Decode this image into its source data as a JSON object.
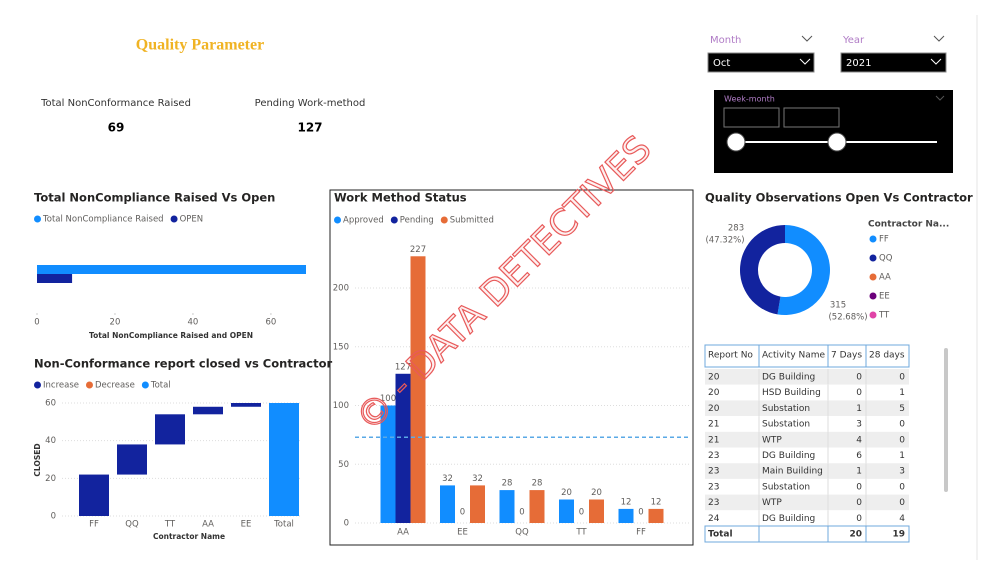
{
  "header": {
    "title": "Quality Parameter"
  },
  "kpis": [
    {
      "label": "Total NonConformance Raised",
      "value": 69
    },
    {
      "label": "Pending Work-method",
      "value": 127
    }
  ],
  "slicers": {
    "month": {
      "label": "Month",
      "value": "Oct"
    },
    "year": {
      "label": "Year",
      "value": "2021"
    },
    "week": {
      "label": "Week-month"
    }
  },
  "watermark": "© - DATA DETECTIVES",
  "chart_data": [
    {
      "type": "hbar",
      "title": "Total NonCompliance Raised Vs Open",
      "series": [
        {
          "name": "Total NonCompliance Raised",
          "color": "#118dff",
          "values": [
            69
          ]
        },
        {
          "name": "OPEN",
          "color": "#12239e",
          "values": [
            9
          ]
        }
      ],
      "xlim": [
        0,
        69
      ],
      "xticks": [
        0,
        20,
        40,
        60
      ],
      "xlabel": "Total NonCompliance Raised and OPEN"
    },
    {
      "type": "waterfall",
      "title": "Non-Conformance report closed vs Contractor",
      "legend": [
        {
          "name": "Increase",
          "color": "#12239e"
        },
        {
          "name": "Decrease",
          "color": "#e66c37"
        },
        {
          "name": "Total",
          "color": "#118dff"
        }
      ],
      "categories": [
        "FF",
        "QQ",
        "TT",
        "AA",
        "EE",
        "Total"
      ],
      "values": [
        22,
        16,
        16,
        4,
        2,
        60
      ],
      "ylim": [
        0,
        60
      ],
      "yticks": [
        0,
        20,
        40,
        60
      ],
      "ylabel": "CLOSED",
      "xlabel": "Contractor Name",
      "grid": true
    },
    {
      "type": "bar",
      "title": "Work Method Status",
      "categories": [
        "AA",
        "EE",
        "QQ",
        "TT",
        "FF"
      ],
      "series": [
        {
          "name": "Approved",
          "color": "#118dff",
          "values": [
            100,
            32,
            28,
            20,
            12
          ]
        },
        {
          "name": "Pending",
          "color": "#12239e",
          "values": [
            127,
            0,
            0,
            0,
            0
          ]
        },
        {
          "name": "Submitted",
          "color": "#e66c37",
          "values": [
            227,
            32,
            28,
            20,
            12
          ]
        }
      ],
      "ylim": [
        0,
        240
      ],
      "yticks": [
        0,
        50,
        100,
        150,
        200
      ],
      "reference_line": 73,
      "grid": true
    },
    {
      "type": "pie",
      "title": "Quality Observations Open Vs Contractor",
      "legend_title": "Contractor Na...",
      "categories": [
        "FF",
        "QQ",
        "AA",
        "EE",
        "TT"
      ],
      "colors": [
        "#118dff",
        "#12239e",
        "#e66c37",
        "#6b007b",
        "#e044a7"
      ],
      "values": [
        315,
        283,
        null,
        null,
        null
      ],
      "percent_labels": [
        "(52.68%)",
        "(47.32%)",
        null,
        null,
        null
      ]
    }
  ],
  "table": {
    "columns": [
      "Report No",
      "Activity Name",
      "7 Days",
      "28 days"
    ],
    "rows": [
      [
        20,
        "DG Building",
        0,
        0
      ],
      [
        20,
        "HSD Building",
        0,
        1
      ],
      [
        20,
        "Substation",
        1,
        5
      ],
      [
        21,
        "Substation",
        3,
        0
      ],
      [
        21,
        "WTP",
        4,
        0
      ],
      [
        23,
        "DG Building",
        6,
        1
      ],
      [
        23,
        "Main Building",
        1,
        3
      ],
      [
        23,
        "Substation",
        0,
        0
      ],
      [
        23,
        "WTP",
        0,
        0
      ],
      [
        24,
        "DG Building",
        0,
        4
      ]
    ],
    "total": {
      "label": "Total",
      "values": [
        20,
        19
      ]
    }
  }
}
